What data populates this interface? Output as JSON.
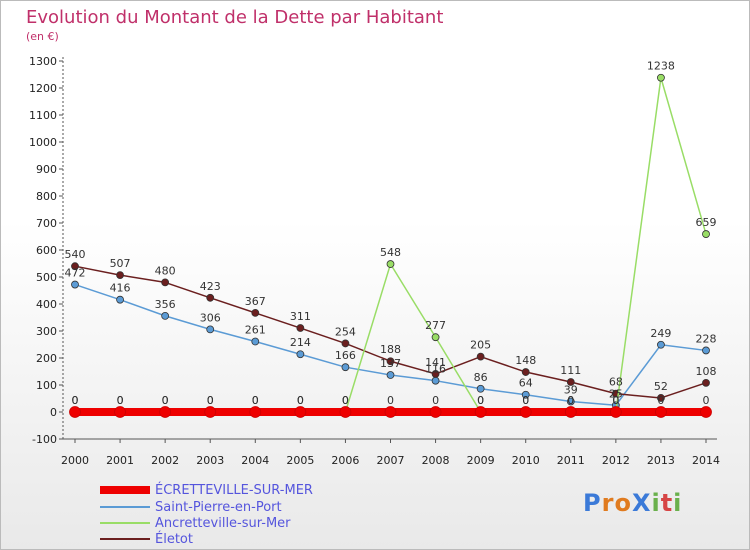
{
  "chart_data": {
    "type": "line",
    "title": "Evolution du Montant de la Dette par Habitant",
    "subtitle": "(en €)",
    "xlabel": "",
    "ylabel": "",
    "x": [
      "2000",
      "2001",
      "2002",
      "2003",
      "2004",
      "2005",
      "2006",
      "2007",
      "2008",
      "2009",
      "2010",
      "2011",
      "2012",
      "2013",
      "2014"
    ],
    "ylim": [
      -100,
      1300
    ],
    "yticks": [
      -100,
      0,
      100,
      200,
      300,
      400,
      500,
      600,
      700,
      800,
      900,
      1000,
      1100,
      1200,
      1300
    ],
    "grid": false,
    "legend_position": "bottom-left",
    "series": [
      {
        "name": "ÉCRETTEVILLE-SUR-MER",
        "color": "#ee0000",
        "values": [
          0,
          0,
          0,
          0,
          0,
          0,
          0,
          0,
          0,
          0,
          0,
          0,
          0,
          0,
          0
        ]
      },
      {
        "name": "Saint-Pierre-en-Port",
        "color": "#5b9bd5",
        "values": [
          472,
          416,
          356,
          306,
          261,
          214,
          166,
          137,
          116,
          86,
          64,
          39,
          25,
          249,
          228
        ]
      },
      {
        "name": "Ancretteville-sur-Mer",
        "color": "#99dd66",
        "values": [
          0,
          0,
          0,
          0,
          0,
          0,
          0,
          548,
          277,
          0,
          0,
          0,
          0,
          1238,
          659
        ]
      },
      {
        "name": "Életot",
        "color": "#6b1f1f",
        "values": [
          540,
          507,
          480,
          423,
          367,
          311,
          254,
          188,
          141,
          205,
          148,
          111,
          68,
          52,
          108
        ]
      }
    ]
  },
  "logo": {
    "text": "ProXiti",
    "letters": [
      "P",
      "r",
      "o",
      "X",
      "i",
      "t",
      "i"
    ]
  }
}
